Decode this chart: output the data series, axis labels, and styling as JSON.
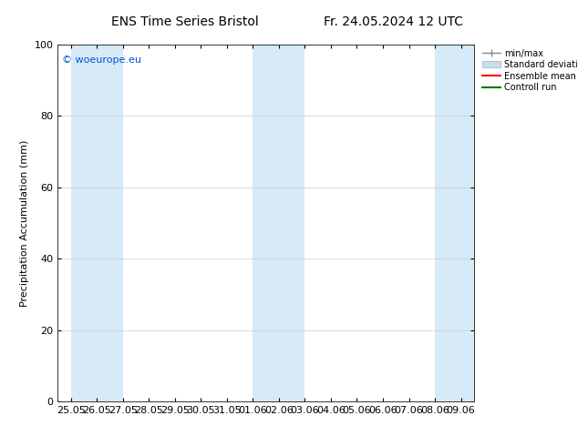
{
  "title_left": "ENS Time Series Bristol",
  "title_right": "Fr. 24.05.2024 12 UTC",
  "ylabel": "Precipitation Accumulation (mm)",
  "watermark": "© woeurope.eu",
  "watermark_color": "#0055cc",
  "ylim": [
    0,
    100
  ],
  "yticks": [
    0,
    20,
    40,
    60,
    80,
    100
  ],
  "x_tick_labels": [
    "25.05",
    "26.05",
    "27.05",
    "28.05",
    "29.05",
    "30.05",
    "31.05",
    "01.06",
    "02.06",
    "03.06",
    "04.06",
    "05.06",
    "06.06",
    "07.06",
    "08.06",
    "09.06"
  ],
  "shade_color": "#d6eaf8",
  "background_color": "#ffffff",
  "legend_entries": [
    "min/max",
    "Standard deviation",
    "Ensemble mean run",
    "Controll run"
  ],
  "legend_line_color": "#888888",
  "legend_std_color": "#c8dff0",
  "legend_ens_color": "#ff0000",
  "legend_ctrl_color": "#007700",
  "font_size": 8,
  "title_font_size": 10
}
